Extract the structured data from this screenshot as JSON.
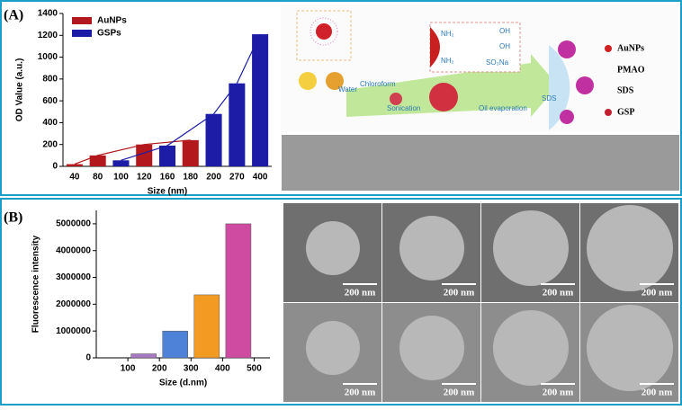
{
  "panels": [
    {
      "label": "(A)"
    },
    {
      "label": "(B)"
    }
  ],
  "chart_data": [
    {
      "type": "bar",
      "x_label": "Size (nm)",
      "y_label": "OD Value (a.u.)",
      "categories": [
        "40",
        "80",
        "100",
        "120",
        "160",
        "180",
        "200",
        "270",
        "400"
      ],
      "series": [
        {
          "name": "AuNPs",
          "color": "#b3191c",
          "values": [
            20,
            100,
            null,
            200,
            null,
            240,
            null,
            null,
            null
          ]
        },
        {
          "name": "GSPs",
          "color": "#1c1ca6",
          "values": [
            null,
            null,
            55,
            null,
            190,
            null,
            480,
            760,
            1210
          ]
        }
      ],
      "ylim": [
        0,
        1400
      ],
      "yticks": [
        0,
        200,
        400,
        600,
        800,
        1000,
        1200,
        1400
      ],
      "trend_lines": true,
      "legend": "upper left"
    },
    {
      "type": "bar",
      "x_label": "Size (d.nm)",
      "y_label": "Fluorescence intensity",
      "x": [
        150,
        250,
        350,
        450
      ],
      "values": [
        150000,
        1000000,
        2350000,
        5000000
      ],
      "colors": [
        "#a979c6",
        "#4d82d8",
        "#f39a22",
        "#cf4ba2"
      ],
      "xlim": [
        0,
        550
      ],
      "xticks": [
        100,
        200,
        300,
        400,
        500
      ],
      "ylim": [
        0,
        5500000
      ],
      "yticks": [
        0,
        1000000,
        2000000,
        3000000,
        4000000,
        5000000
      ]
    }
  ],
  "schematic": {
    "steps": [
      "Water",
      "Chloroform",
      "Sonication",
      "Oil evaporation",
      "SDS"
    ],
    "chemistry": [
      "NH₂",
      "NH₂",
      "OH",
      "OH",
      "SO₃Na"
    ],
    "legend": [
      "AuNPs",
      "PMAO",
      "SDS",
      "GSP"
    ]
  },
  "micrographs": {
    "scale_bars": [
      "200 nm",
      "200 nm",
      "200 nm",
      "200 nm",
      "200 nm",
      "200 nm",
      "200 nm",
      "200 nm"
    ]
  }
}
